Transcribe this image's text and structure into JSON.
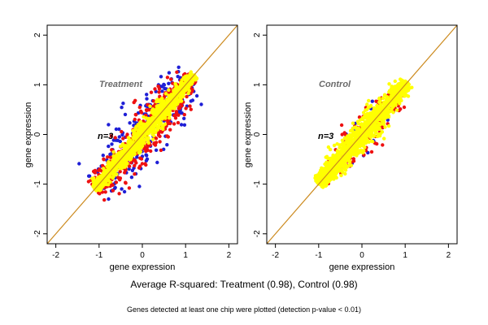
{
  "footer": {
    "average_r2": "Average R-squared: Treatment (0.98), Control (0.98)",
    "note": "Genes detected at least one chip were plotted (detection p-value < 0.01)"
  },
  "chart_data": [
    {
      "type": "scatter",
      "panel_label": "Treatment",
      "n_label": "n=3",
      "xlabel": "gene expression",
      "ylabel": "gene expression",
      "xlim": [
        -2.2,
        2.2
      ],
      "ylim": [
        -2.2,
        2.2
      ],
      "xticks": [
        "-2",
        "-1",
        "0",
        "1",
        "2"
      ],
      "yticks": [
        "-2",
        "-1",
        "0",
        "1",
        "2"
      ],
      "diagonal": {
        "from": [
          -2.2,
          -2.2
        ],
        "to": [
          2.2,
          2.2
        ],
        "color": "#cc8a1e"
      },
      "series": [
        {
          "color": "#1f1fd6",
          "range": [
            -1.05,
            1.15
          ],
          "spread": 0.42,
          "count": 260
        },
        {
          "color": "#ee1111",
          "range": [
            -1.1,
            1.15
          ],
          "spread": 0.3,
          "count": 520
        },
        {
          "color": "#ffff00",
          "range": [
            -1.1,
            1.2
          ],
          "spread": 0.14,
          "count": 1100
        }
      ]
    },
    {
      "type": "scatter",
      "panel_label": "Control",
      "n_label": "n=3",
      "xlabel": "gene expression",
      "ylabel": "gene expression",
      "xlim": [
        -2.2,
        2.2
      ],
      "ylim": [
        -2.2,
        2.2
      ],
      "xticks": [
        "-2",
        "-1",
        "0",
        "1",
        "2"
      ],
      "yticks": [
        "-2",
        "-1",
        "0",
        "1",
        "2"
      ],
      "diagonal": {
        "from": [
          -2.2,
          -2.2
        ],
        "to": [
          2.2,
          2.2
        ],
        "color": "#cc8a1e"
      },
      "series": [
        {
          "color": "#1f1fd6",
          "range": [
            -0.5,
            0.5
          ],
          "spread": 0.26,
          "count": 40
        },
        {
          "color": "#ee1111",
          "range": [
            -0.9,
            0.9
          ],
          "spread": 0.22,
          "count": 220
        },
        {
          "color": "#ffff00",
          "range": [
            -1.0,
            1.05
          ],
          "spread": 0.17,
          "count": 1200
        }
      ]
    }
  ]
}
